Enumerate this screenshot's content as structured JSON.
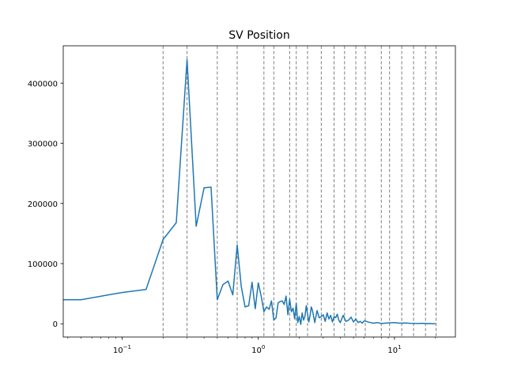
{
  "chart_data": {
    "type": "line",
    "title": "SV Position",
    "xlabel": "",
    "ylabel": "",
    "xscale": "log",
    "xlim": [
      0.037,
      28
    ],
    "ylim": [
      -22000,
      462000
    ],
    "grid": false,
    "line_color": "#1f77b4",
    "vline_color": "#808080",
    "x_ticks": [
      {
        "value": 0.1,
        "base": "10",
        "exp": "−1"
      },
      {
        "value": 1,
        "base": "10",
        "exp": "0"
      },
      {
        "value": 10,
        "base": "10",
        "exp": "1"
      }
    ],
    "y_ticks": [
      {
        "value": 0,
        "label": "0"
      },
      {
        "value": 100000,
        "label": "100000"
      },
      {
        "value": 200000,
        "label": "200000"
      },
      {
        "value": 300000,
        "label": "300000"
      },
      {
        "value": 400000,
        "label": "400000"
      }
    ],
    "vlines": [
      0.2,
      0.3,
      0.5,
      0.7,
      1.1,
      1.3,
      1.7,
      1.9,
      2.3,
      2.9,
      3.6,
      4.3,
      5.2,
      6.1,
      8.0,
      9.2,
      11.3,
      13.8,
      16.9,
      20.2
    ],
    "series": [
      {
        "x": [
          0.03,
          0.05,
          0.1,
          0.15,
          0.2,
          0.25,
          0.3,
          0.35,
          0.4,
          0.45,
          0.5,
          0.55,
          0.6,
          0.65,
          0.7,
          0.75,
          0.8,
          0.85,
          0.9,
          0.95,
          1.0,
          1.05,
          1.1,
          1.15,
          1.2,
          1.25,
          1.3,
          1.35,
          1.4,
          1.45,
          1.5,
          1.55,
          1.6,
          1.65,
          1.7,
          1.75,
          1.8,
          1.85,
          1.9,
          1.95,
          2.0,
          2.05,
          2.1,
          2.15,
          2.2,
          2.25,
          2.3,
          2.35,
          2.4,
          2.45,
          2.5,
          2.6,
          2.7,
          2.8,
          2.9,
          3.0,
          3.1,
          3.2,
          3.3,
          3.4,
          3.5,
          3.6,
          3.7,
          3.8,
          3.9,
          4.0,
          4.2,
          4.4,
          4.6,
          4.8,
          5.0,
          5.2,
          5.4,
          5.6,
          5.8,
          6.0,
          6.5,
          7.0,
          7.5,
          8.0,
          8.5,
          9.0,
          10.0,
          11.0,
          12.0,
          13.0,
          14.0,
          15.0,
          16.0,
          17.0,
          18.0,
          19.0,
          20.0
        ],
        "y": [
          40000,
          40000,
          52000,
          57000,
          140000,
          168000,
          439000,
          162000,
          226000,
          227000,
          40000,
          65000,
          71000,
          48000,
          131000,
          62000,
          28000,
          30000,
          69000,
          25000,
          68000,
          46000,
          20000,
          28000,
          24000,
          38000,
          6000,
          10000,
          35000,
          37000,
          38000,
          32000,
          46000,
          15000,
          41000,
          20000,
          26000,
          8000,
          34000,
          2000,
          12000,
          -1000,
          18000,
          6000,
          12000,
          30000,
          16000,
          3000,
          14000,
          28000,
          22000,
          2000,
          22000,
          10000,
          12000,
          15000,
          4000,
          18000,
          8000,
          14000,
          3000,
          12000,
          10000,
          16000,
          6000,
          2000,
          14000,
          4000,
          6000,
          11000,
          3000,
          8000,
          2000,
          4000,
          1000,
          5000,
          2500,
          1000,
          2000,
          500,
          1000,
          1500,
          2000,
          1000,
          1200,
          800,
          600,
          400,
          800,
          300,
          500,
          200,
          100
        ]
      }
    ]
  }
}
